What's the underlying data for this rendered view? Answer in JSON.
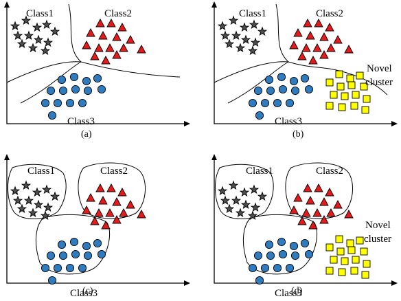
{
  "panels": [
    {
      "id": "a",
      "caption": "(a)",
      "mode": "lines",
      "novel": false,
      "labels": {
        "class1": "Class1",
        "class2": "Class2",
        "class3": "Class3"
      }
    },
    {
      "id": "b",
      "caption": "(b)",
      "mode": "lines",
      "novel": true,
      "labels": {
        "class1": "Class1",
        "class2": "Class2",
        "class3": "Class3",
        "novel_line1": "Novel",
        "novel_line2": "cluster"
      }
    },
    {
      "id": "c",
      "caption": "(c)",
      "mode": "blobs",
      "novel": false,
      "labels": {
        "class1": "Class1",
        "class2": "Class2",
        "class3": "Class3"
      }
    },
    {
      "id": "d",
      "caption": "(d)",
      "mode": "blobs",
      "novel": true,
      "labels": {
        "class1": "Class1",
        "class2": "Class2",
        "class3": "Class3",
        "novel_line1": "Novel",
        "novel_line2": "cluster"
      }
    }
  ],
  "colors": {
    "class1": "#4d4d4d",
    "class2": "#e41a1c",
    "class3": "#2e7bbf",
    "novel": "#ffff00",
    "line": "#000000"
  },
  "markers": {
    "class1": "star-icon",
    "class2": "triangle-icon",
    "class3": "circle-icon",
    "novel": "square-icon"
  }
}
